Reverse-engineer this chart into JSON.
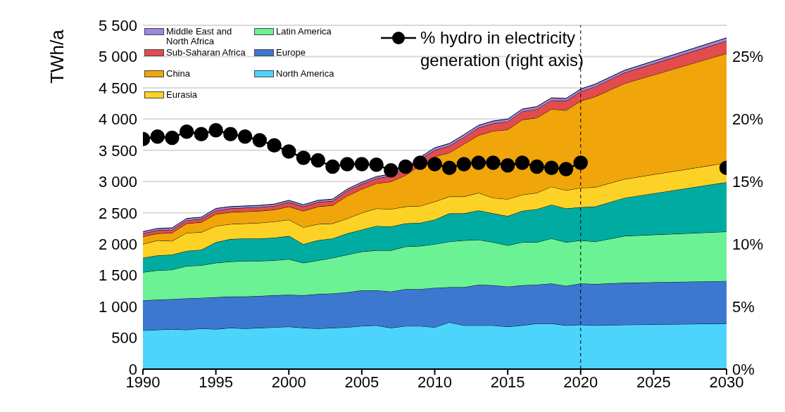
{
  "chart_data": {
    "type": "area",
    "stacked": true,
    "ylabel": "TWh/a",
    "x": [
      1990,
      1991,
      1992,
      1993,
      1994,
      1995,
      1996,
      1997,
      1998,
      1999,
      2000,
      2001,
      2002,
      2003,
      2004,
      2005,
      2006,
      2007,
      2008,
      2009,
      2010,
      2011,
      2012,
      2013,
      2014,
      2015,
      2016,
      2017,
      2018,
      2019,
      2020,
      2021,
      2023,
      2030
    ],
    "xlim": [
      1990,
      2030
    ],
    "xticks": [
      1990,
      1995,
      2000,
      2005,
      2010,
      2015,
      2020,
      2025,
      2030
    ],
    "ylim": [
      0,
      5500
    ],
    "yticks": [
      0,
      500,
      {
        "value": 1000,
        "label": "1 000"
      },
      {
        "value": 1500,
        "label": "1 500"
      },
      {
        "value": 2000,
        "label": "2 000"
      },
      {
        "value": 2500,
        "label": "2 500"
      },
      {
        "value": 3000,
        "label": "3 000"
      },
      {
        "value": 3500,
        "label": "3 500"
      },
      {
        "value": 4000,
        "label": "4 000"
      },
      {
        "value": 4500,
        "label": "4 500"
      },
      {
        "value": 5000,
        "label": "5 000"
      },
      {
        "value": 5500,
        "label": "5 500"
      }
    ],
    "y2lim": [
      0,
      27.5
    ],
    "y2ticks": [
      {
        "value": 0,
        "label": "0%"
      },
      {
        "value": 5,
        "label": "5%"
      },
      {
        "value": 10,
        "label": "10%"
      },
      {
        "value": 15,
        "label": "15%"
      },
      {
        "value": 20,
        "label": "20%"
      },
      {
        "value": 25,
        "label": "25%"
      }
    ],
    "grid": "y",
    "legend": "top left",
    "ref_lines": [
      {
        "axis": "x",
        "value": 2020,
        "line_style": "dashed",
        "color": "#000000"
      }
    ],
    "series": [
      {
        "name": "North America",
        "color": "#4dd4fc",
        "values": [
          620,
          630,
          640,
          630,
          650,
          640,
          660,
          650,
          660,
          670,
          680,
          660,
          650,
          660,
          670,
          690,
          700,
          660,
          690,
          690,
          670,
          750,
          700,
          700,
          700,
          680,
          700,
          730,
          730,
          700,
          710,
          700,
          710,
          730
        ]
      },
      {
        "name": "Europe",
        "color": "#3c78d0",
        "values": [
          480,
          480,
          480,
          500,
          490,
          510,
          500,
          510,
          510,
          510,
          510,
          520,
          550,
          550,
          560,
          570,
          560,
          580,
          590,
          590,
          630,
          560,
          610,
          650,
          640,
          640,
          640,
          620,
          640,
          630,
          660,
          660,
          670,
          680
        ]
      },
      {
        "name": "Latin America",
        "color": "#6af295",
        "values": [
          450,
          470,
          470,
          520,
          520,
          550,
          560,
          570,
          560,
          560,
          570,
          520,
          540,
          570,
          600,
          620,
          640,
          660,
          680,
          690,
          700,
          730,
          750,
          720,
          690,
          660,
          690,
          680,
          720,
          700,
          690,
          680,
          750,
          790
        ]
      },
      {
        "color": "#00aca2",
        "values": [
          230,
          240,
          240,
          240,
          250,
          330,
          360,
          360,
          360,
          360,
          370,
          300,
          320,
          310,
          340,
          350,
          390,
          380,
          370,
          370,
          390,
          450,
          430,
          470,
          460,
          470,
          500,
          530,
          540,
          540,
          530,
          560,
          610,
          790
        ]
      },
      {
        "name": "Eurasia",
        "color": "#fcd226",
        "values": [
          220,
          240,
          220,
          290,
          280,
          260,
          240,
          240,
          250,
          260,
          260,
          270,
          260,
          240,
          240,
          270,
          280,
          280,
          270,
          270,
          290,
          270,
          270,
          280,
          250,
          270,
          260,
          260,
          290,
          290,
          310,
          310,
          300,
          310
        ]
      },
      {
        "name": "China",
        "color": "#f0a50a",
        "values": [
          120,
          110,
          130,
          150,
          160,
          190,
          190,
          190,
          190,
          190,
          210,
          260,
          280,
          290,
          360,
          380,
          400,
          440,
          500,
          650,
          720,
          700,
          840,
          920,
          1070,
          1110,
          1200,
          1200,
          1240,
          1280,
          1390,
          1450,
          1530,
          1750
        ]
      },
      {
        "name": "Sub-Saharan Africa",
        "color": "#e24c4c",
        "values": [
          50,
          50,
          50,
          50,
          50,
          60,
          60,
          60,
          60,
          60,
          70,
          70,
          70,
          70,
          80,
          80,
          80,
          90,
          90,
          100,
          100,
          110,
          110,
          120,
          120,
          130,
          130,
          140,
          140,
          150,
          150,
          160,
          170,
          200
        ]
      },
      {
        "name": "Middle East and North Africa",
        "color": "#9d86e0",
        "values": [
          30,
          30,
          30,
          30,
          30,
          30,
          30,
          30,
          30,
          30,
          30,
          30,
          30,
          30,
          30,
          30,
          30,
          30,
          30,
          30,
          40,
          40,
          40,
          40,
          40,
          40,
          40,
          40,
          40,
          40,
          40,
          40,
          40,
          50
        ]
      },
      {
        "name": "% hydro in electricity generation (right axis)",
        "type": "line",
        "axis": "y2",
        "marker": "circle",
        "line_style": "solid",
        "color": "#000000",
        "values": [
          18.4,
          18.6,
          18.5,
          19.0,
          18.8,
          19.1,
          18.8,
          18.6,
          18.3,
          17.9,
          17.4,
          16.9,
          16.7,
          16.2,
          16.4,
          16.4,
          16.35,
          15.9,
          16.2,
          16.5,
          16.4,
          16.1,
          16.4,
          16.5,
          16.5,
          16.3,
          16.5,
          16.2,
          16.1,
          16.0,
          16.5,
          null,
          null,
          16.1
        ]
      }
    ]
  }
}
